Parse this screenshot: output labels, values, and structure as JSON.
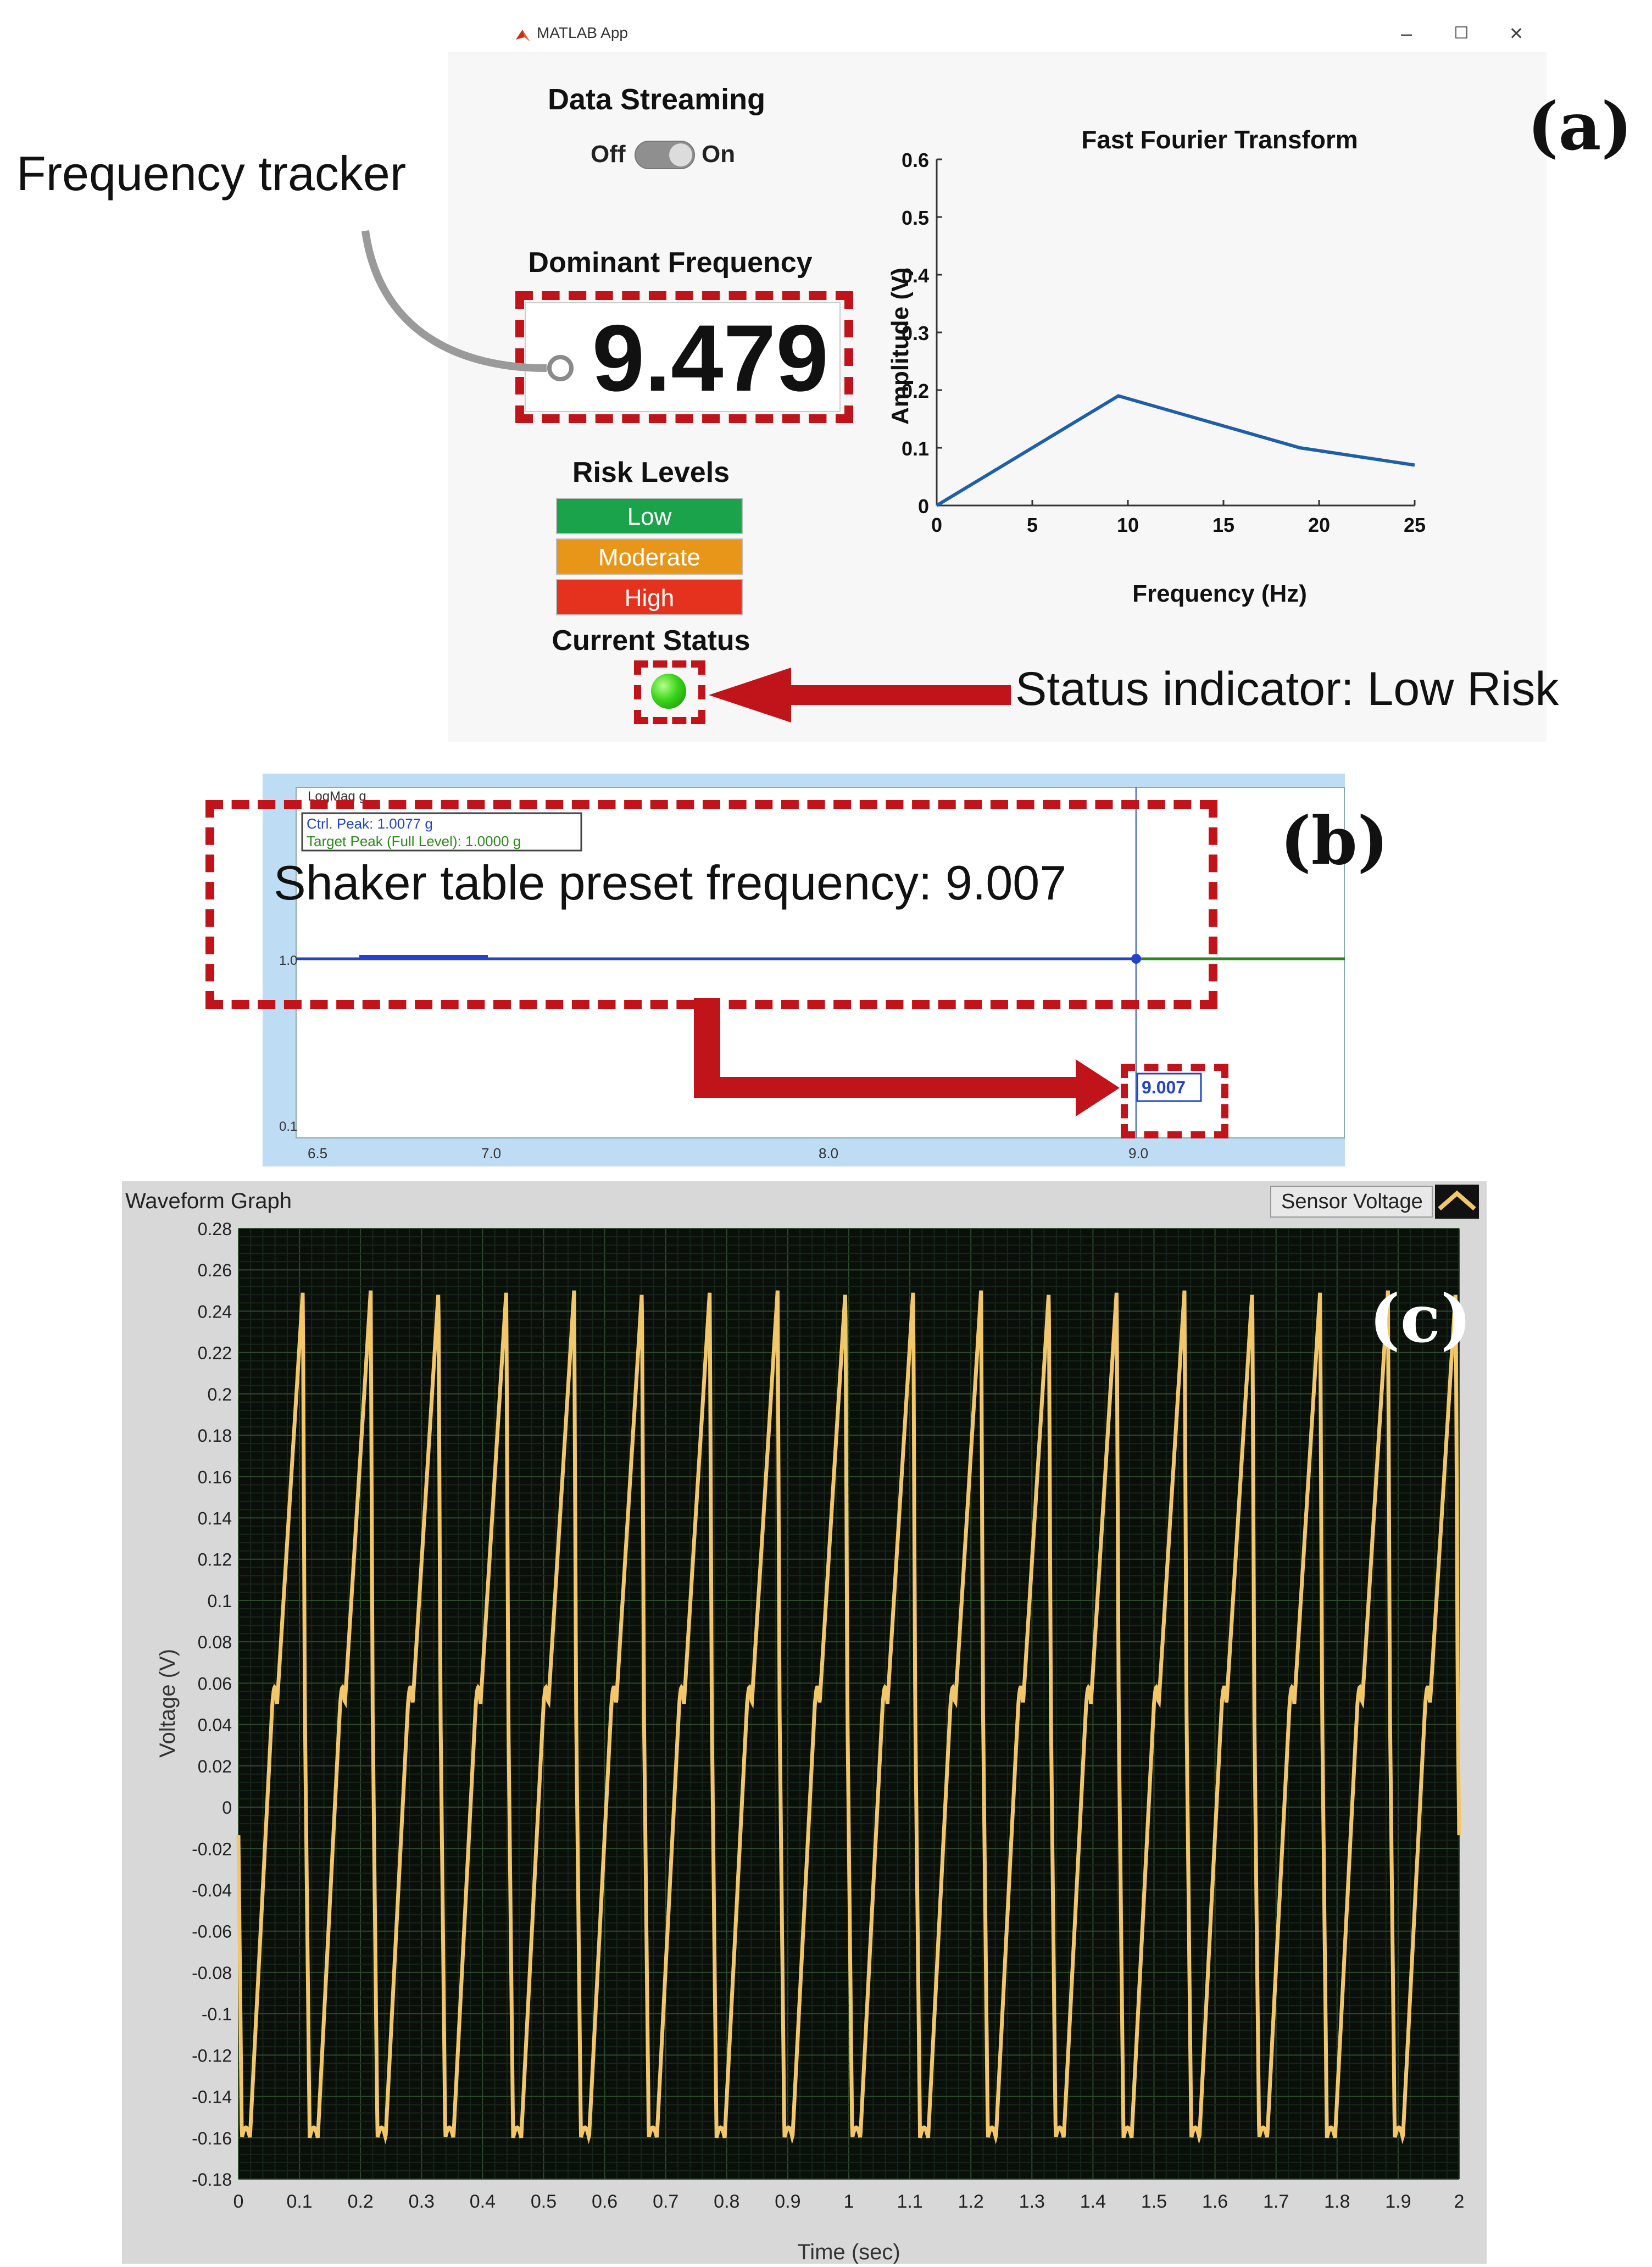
{
  "panel_a": {
    "label": "(a)",
    "window": {
      "title": "MATLAB App",
      "minimize": "–",
      "maximize": "☐",
      "close": "✕"
    },
    "data_streaming": {
      "title": "Data Streaming",
      "off_label": "Off",
      "on_label": "On",
      "state": "on"
    },
    "dominant_frequency": {
      "title": "Dominant Frequency",
      "value": "9.479"
    },
    "risk_levels": {
      "title": "Risk Levels",
      "items": [
        {
          "label": "Low",
          "color": "#1aa34a"
        },
        {
          "label": "Moderate",
          "color": "#e8961a"
        },
        {
          "label": "High",
          "color": "#e4321e"
        }
      ]
    },
    "current_status": {
      "title": "Current Status",
      "color": "#2ecc1a"
    },
    "annotations": {
      "frequency_tracker": "Frequency tracker",
      "status_indicator": "Status indicator: Low Risk"
    },
    "accent_color": "#c0141a"
  },
  "fft_chart": {
    "chart_data": {
      "type": "line",
      "title": "Fast Fourier Transform",
      "xlabel": "Frequency (Hz)",
      "ylabel": "Amplitude (V)",
      "xlim": [
        0,
        25
      ],
      "ylim": [
        0,
        0.6
      ],
      "xticks": [
        "0",
        "5",
        "10",
        "15",
        "20",
        "25"
      ],
      "yticks": [
        "0",
        "0.1",
        "0.2",
        "0.3",
        "0.4",
        "0.5",
        "0.6"
      ],
      "x": [
        0,
        9.5,
        19,
        25
      ],
      "y": [
        0.0,
        0.19,
        0.1,
        0.07
      ],
      "color": "#1f5fa8",
      "grid": false
    }
  },
  "panel_b": {
    "label": "(b)",
    "plot_title": "LogMag g",
    "legend": {
      "ctrl_peak": "Ctrl. Peak: 1.0077 g",
      "target_peak": "Target Peak (Full Level): 1.0000 g"
    },
    "y_ticks": [
      "1.0",
      "0.1"
    ],
    "x_ticks": [
      "6.5",
      "7.0",
      "8.0",
      "9.0"
    ],
    "cursor_value": "9.007",
    "annotation": "Shaker table preset frequency: 9.007",
    "ctrl_color": "#2244cc",
    "target_color": "#2a8a1a"
  },
  "panel_c": {
    "label": "(c)",
    "graph_title": "Waveform Graph",
    "legend_label": "Sensor Voltage",
    "chart_data": {
      "type": "line",
      "xlabel": "Time (sec)",
      "ylabel": "Voltage (V)",
      "xlim": [
        0,
        2
      ],
      "ylim": [
        -0.18,
        0.28
      ],
      "xticks": [
        "0",
        "0.1",
        "0.2",
        "0.3",
        "0.4",
        "0.5",
        "0.6",
        "0.7",
        "0.8",
        "0.9",
        "1",
        "1.1",
        "1.2",
        "1.3",
        "1.4",
        "1.5",
        "1.6",
        "1.7",
        "1.8",
        "1.9",
        "2"
      ],
      "yticks": [
        "0.28",
        "0.26",
        "0.24",
        "0.22",
        "0.2",
        "0.18",
        "0.16",
        "0.14",
        "0.12",
        "0.1",
        "0.08",
        "0.06",
        "0.04",
        "0.02",
        "0",
        "-0.02",
        "-0.04",
        "-0.06",
        "-0.08",
        "-0.1",
        "-0.12",
        "-0.14",
        "-0.16",
        "-0.18"
      ],
      "series": [
        {
          "name": "Sensor Voltage",
          "color": "#f2c76a",
          "frequency_hz": 9.0,
          "peak": 0.25,
          "trough": -0.16
        }
      ],
      "background": "#0a0f0a",
      "grid": true
    }
  }
}
